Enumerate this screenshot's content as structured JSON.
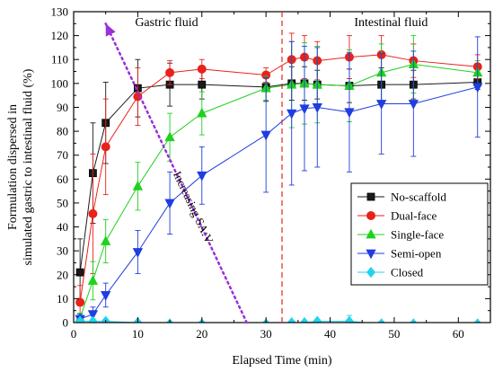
{
  "chart_data": {
    "type": "line",
    "xlabel": "Elapsed Time (min)",
    "ylabel_lines": [
      "Formulation dispersed in",
      "simulated gastric to intestinal fluid (%)"
    ],
    "xlim": [
      0,
      65
    ],
    "ylim": [
      0,
      130
    ],
    "xticks": [
      0,
      10,
      20,
      30,
      40,
      50,
      60
    ],
    "yticks": [
      0,
      10,
      20,
      30,
      40,
      50,
      60,
      70,
      80,
      90,
      100,
      110,
      120,
      130
    ],
    "region_labels": [
      {
        "text": "Gastric fluid",
        "x": 14.5
      },
      {
        "text": "Intestinal fluid",
        "x": 49.5
      }
    ],
    "divider_x": 32.5,
    "annotation": {
      "text": "Increasing SA:V",
      "from": [
        27,
        0
      ],
      "to": [
        5,
        125
      ]
    },
    "series": [
      {
        "name": "No-scaffold",
        "color": "#1a1a1a",
        "marker": "square",
        "x": [
          1,
          3,
          5,
          10,
          15,
          20,
          30,
          34,
          36,
          38,
          43,
          48,
          53,
          63
        ],
        "y": [
          21,
          62.5,
          83.5,
          98,
          99.5,
          99.5,
          98.5,
          100,
          100,
          99.5,
          99,
          99.5,
          99.5,
          100.5
        ],
        "err": [
          14,
          21,
          17,
          12,
          9,
          6,
          6,
          7,
          7,
          6,
          7,
          7,
          6,
          3
        ]
      },
      {
        "name": "Dual-face",
        "color": "#e8221a",
        "marker": "circle",
        "x": [
          1,
          3,
          5,
          10,
          15,
          20,
          30,
          34,
          36,
          38,
          43,
          48,
          53,
          63
        ],
        "y": [
          8.5,
          45.5,
          73.5,
          94.5,
          104.5,
          106,
          103.5,
          110,
          111,
          109.5,
          111,
          112,
          109.5,
          107
        ],
        "err": [
          7,
          25,
          20,
          12,
          5,
          4,
          3,
          11,
          9,
          8,
          9,
          8,
          7,
          5
        ]
      },
      {
        "name": "Single-face",
        "color": "#1ed21e",
        "marker": "triangle-up",
        "x": [
          1,
          3,
          5,
          10,
          15,
          20,
          30,
          34,
          36,
          38,
          43,
          48,
          53,
          63
        ],
        "y": [
          2,
          17.5,
          34,
          57,
          77.5,
          87.5,
          98,
          99.5,
          100,
          99.5,
          99,
          104.5,
          108,
          104.5
        ],
        "err": [
          2,
          8,
          9,
          10,
          10,
          9,
          5,
          18,
          17,
          16,
          15,
          12,
          12,
          5
        ]
      },
      {
        "name": "Semi-open",
        "color": "#1f3de0",
        "marker": "triangle-down",
        "x": [
          1,
          3,
          5,
          10,
          15,
          20,
          30,
          34,
          36,
          38,
          43,
          48,
          53,
          63
        ],
        "y": [
          1.5,
          3.5,
          11.5,
          29.5,
          50,
          61.5,
          78.5,
          87.5,
          89.5,
          90,
          88,
          91.5,
          91.5,
          98.5
        ],
        "err": [
          2,
          3,
          5,
          9,
          13,
          12,
          24,
          30,
          26,
          25,
          25,
          21,
          22,
          21
        ]
      },
      {
        "name": "Closed",
        "color": "#22d3ee",
        "marker": "diamond",
        "x": [
          1,
          3,
          5,
          10,
          15,
          20,
          30,
          34,
          36,
          38,
          43,
          48,
          53,
          63
        ],
        "y": [
          0.5,
          0.5,
          0.5,
          0,
          -0.5,
          -0.5,
          -0.5,
          0,
          0,
          0.5,
          0.5,
          -0.5,
          -0.5,
          -0.5
        ],
        "err": [
          1,
          1,
          0.8,
          0.5,
          0.5,
          0.5,
          0.5,
          0.8,
          0.8,
          0.8,
          2.5,
          1,
          0.5,
          0.5
        ]
      }
    ],
    "legend_position": "right-middle",
    "grid": false
  }
}
